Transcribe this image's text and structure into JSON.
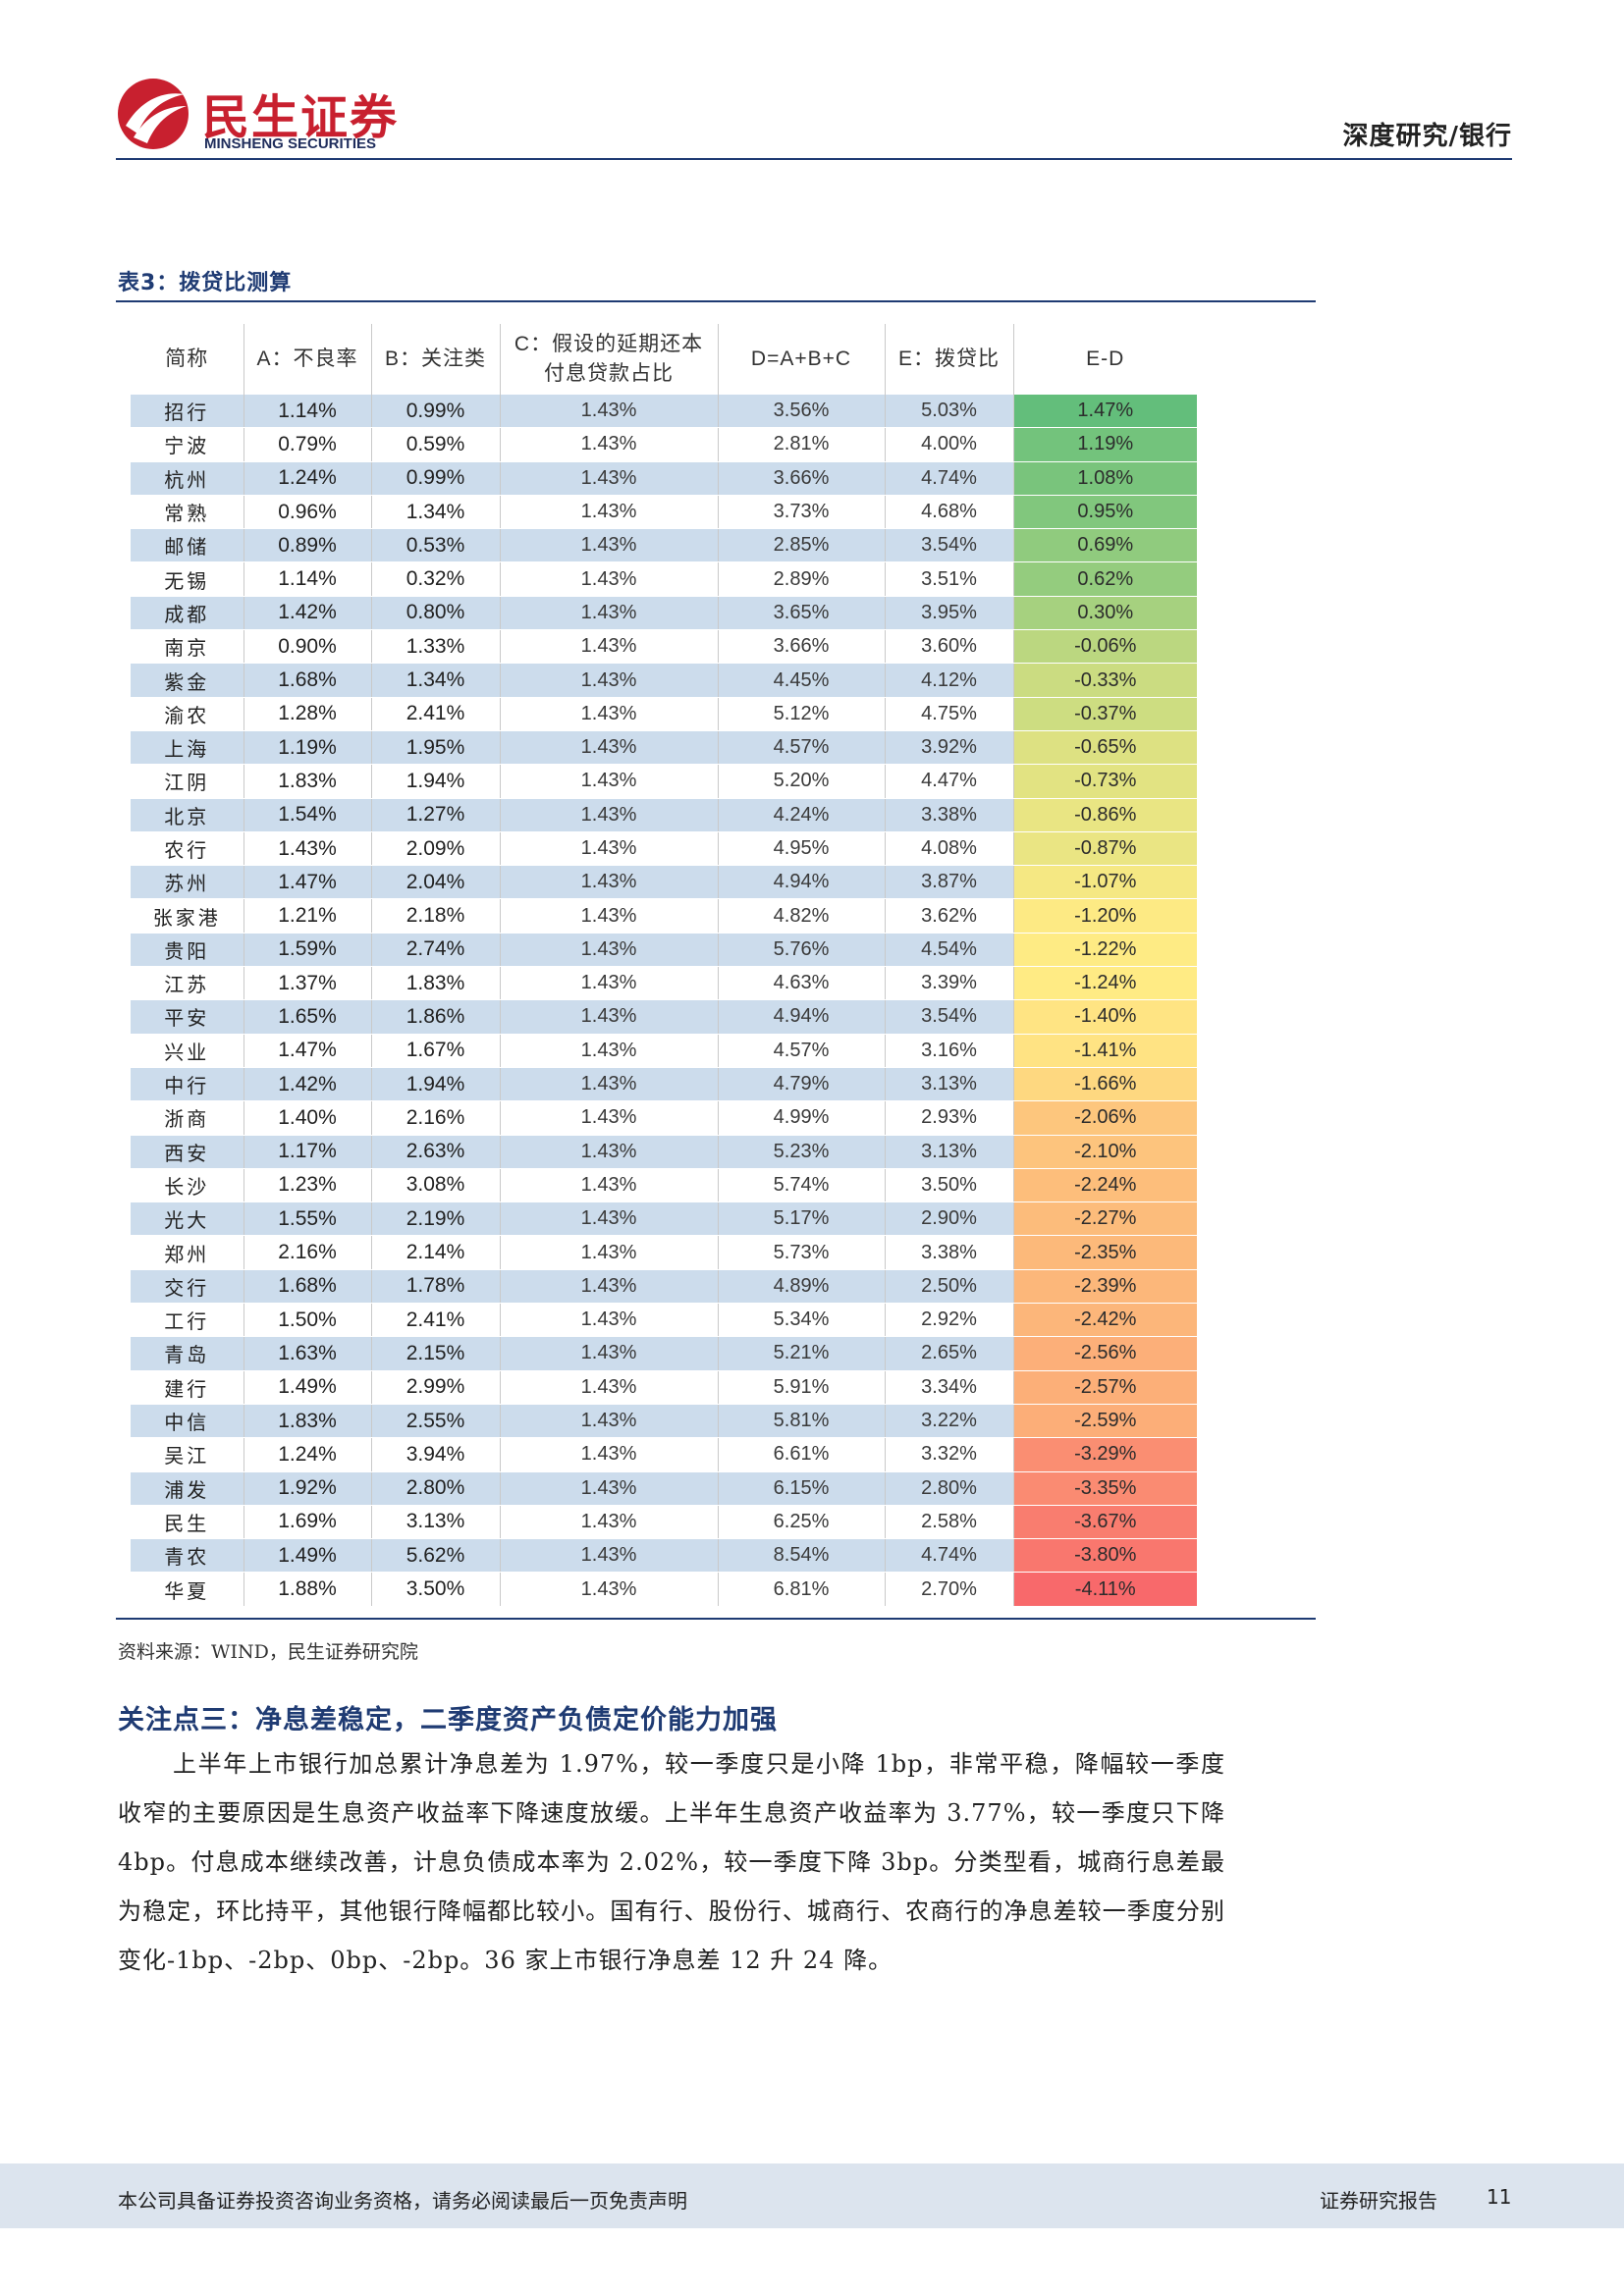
{
  "header": {
    "logo_cn": "民生证券",
    "logo_en": "MINSHENG SECURITIES",
    "category": "深度研究/银行"
  },
  "colors": {
    "brand_red": "#c8202f",
    "brand_navy": "#1f3b73",
    "stripe": "#ccdcec",
    "scale_high": "#63be7b",
    "scale_mid": "#ffeb84",
    "scale_low": "#f8696b"
  },
  "table": {
    "title": "表3：拨贷比测算",
    "headers": [
      "简称",
      "A：不良率",
      "B：关注类",
      "C：假设的延期还本付息贷款占比",
      "D=A+B+C",
      "E：拨贷比",
      "E-D"
    ],
    "rows": [
      {
        "name": "招行",
        "a": "1.14%",
        "b": "0.99%",
        "c": "1.43%",
        "d": "3.56%",
        "e": "5.03%",
        "ed": "1.47%",
        "v": 1.47
      },
      {
        "name": "宁波",
        "a": "0.79%",
        "b": "0.59%",
        "c": "1.43%",
        "d": "2.81%",
        "e": "4.00%",
        "ed": "1.19%",
        "v": 1.19
      },
      {
        "name": "杭州",
        "a": "1.24%",
        "b": "0.99%",
        "c": "1.43%",
        "d": "3.66%",
        "e": "4.74%",
        "ed": "1.08%",
        "v": 1.08
      },
      {
        "name": "常熟",
        "a": "0.96%",
        "b": "1.34%",
        "c": "1.43%",
        "d": "3.73%",
        "e": "4.68%",
        "ed": "0.95%",
        "v": 0.95
      },
      {
        "name": "邮储",
        "a": "0.89%",
        "b": "0.53%",
        "c": "1.43%",
        "d": "2.85%",
        "e": "3.54%",
        "ed": "0.69%",
        "v": 0.69
      },
      {
        "name": "无锡",
        "a": "1.14%",
        "b": "0.32%",
        "c": "1.43%",
        "d": "2.89%",
        "e": "3.51%",
        "ed": "0.62%",
        "v": 0.62
      },
      {
        "name": "成都",
        "a": "1.42%",
        "b": "0.80%",
        "c": "1.43%",
        "d": "3.65%",
        "e": "3.95%",
        "ed": "0.30%",
        "v": 0.3
      },
      {
        "name": "南京",
        "a": "0.90%",
        "b": "1.33%",
        "c": "1.43%",
        "d": "3.66%",
        "e": "3.60%",
        "ed": "-0.06%",
        "v": -0.06
      },
      {
        "name": "紫金",
        "a": "1.68%",
        "b": "1.34%",
        "c": "1.43%",
        "d": "4.45%",
        "e": "4.12%",
        "ed": "-0.33%",
        "v": -0.33
      },
      {
        "name": "渝农",
        "a": "1.28%",
        "b": "2.41%",
        "c": "1.43%",
        "d": "5.12%",
        "e": "4.75%",
        "ed": "-0.37%",
        "v": -0.37
      },
      {
        "name": "上海",
        "a": "1.19%",
        "b": "1.95%",
        "c": "1.43%",
        "d": "4.57%",
        "e": "3.92%",
        "ed": "-0.65%",
        "v": -0.65
      },
      {
        "name": "江阴",
        "a": "1.83%",
        "b": "1.94%",
        "c": "1.43%",
        "d": "5.20%",
        "e": "4.47%",
        "ed": "-0.73%",
        "v": -0.73
      },
      {
        "name": "北京",
        "a": "1.54%",
        "b": "1.27%",
        "c": "1.43%",
        "d": "4.24%",
        "e": "3.38%",
        "ed": "-0.86%",
        "v": -0.86
      },
      {
        "name": "农行",
        "a": "1.43%",
        "b": "2.09%",
        "c": "1.43%",
        "d": "4.95%",
        "e": "4.08%",
        "ed": "-0.87%",
        "v": -0.87
      },
      {
        "name": "苏州",
        "a": "1.47%",
        "b": "2.04%",
        "c": "1.43%",
        "d": "4.94%",
        "e": "3.87%",
        "ed": "-1.07%",
        "v": -1.07
      },
      {
        "name": "张家港",
        "a": "1.21%",
        "b": "2.18%",
        "c": "1.43%",
        "d": "4.82%",
        "e": "3.62%",
        "ed": "-1.20%",
        "v": -1.2
      },
      {
        "name": "贵阳",
        "a": "1.59%",
        "b": "2.74%",
        "c": "1.43%",
        "d": "5.76%",
        "e": "4.54%",
        "ed": "-1.22%",
        "v": -1.22
      },
      {
        "name": "江苏",
        "a": "1.37%",
        "b": "1.83%",
        "c": "1.43%",
        "d": "4.63%",
        "e": "3.39%",
        "ed": "-1.24%",
        "v": -1.24
      },
      {
        "name": "平安",
        "a": "1.65%",
        "b": "1.86%",
        "c": "1.43%",
        "d": "4.94%",
        "e": "3.54%",
        "ed": "-1.40%",
        "v": -1.4
      },
      {
        "name": "兴业",
        "a": "1.47%",
        "b": "1.67%",
        "c": "1.43%",
        "d": "4.57%",
        "e": "3.16%",
        "ed": "-1.41%",
        "v": -1.41
      },
      {
        "name": "中行",
        "a": "1.42%",
        "b": "1.94%",
        "c": "1.43%",
        "d": "4.79%",
        "e": "3.13%",
        "ed": "-1.66%",
        "v": -1.66
      },
      {
        "name": "浙商",
        "a": "1.40%",
        "b": "2.16%",
        "c": "1.43%",
        "d": "4.99%",
        "e": "2.93%",
        "ed": "-2.06%",
        "v": -2.06
      },
      {
        "name": "西安",
        "a": "1.17%",
        "b": "2.63%",
        "c": "1.43%",
        "d": "5.23%",
        "e": "3.13%",
        "ed": "-2.10%",
        "v": -2.1
      },
      {
        "name": "长沙",
        "a": "1.23%",
        "b": "3.08%",
        "c": "1.43%",
        "d": "5.74%",
        "e": "3.50%",
        "ed": "-2.24%",
        "v": -2.24
      },
      {
        "name": "光大",
        "a": "1.55%",
        "b": "2.19%",
        "c": "1.43%",
        "d": "5.17%",
        "e": "2.90%",
        "ed": "-2.27%",
        "v": -2.27
      },
      {
        "name": "郑州",
        "a": "2.16%",
        "b": "2.14%",
        "c": "1.43%",
        "d": "5.73%",
        "e": "3.38%",
        "ed": "-2.35%",
        "v": -2.35
      },
      {
        "name": "交行",
        "a": "1.68%",
        "b": "1.78%",
        "c": "1.43%",
        "d": "4.89%",
        "e": "2.50%",
        "ed": "-2.39%",
        "v": -2.39
      },
      {
        "name": "工行",
        "a": "1.50%",
        "b": "2.41%",
        "c": "1.43%",
        "d": "5.34%",
        "e": "2.92%",
        "ed": "-2.42%",
        "v": -2.42
      },
      {
        "name": "青岛",
        "a": "1.63%",
        "b": "2.15%",
        "c": "1.43%",
        "d": "5.21%",
        "e": "2.65%",
        "ed": "-2.56%",
        "v": -2.56
      },
      {
        "name": "建行",
        "a": "1.49%",
        "b": "2.99%",
        "c": "1.43%",
        "d": "5.91%",
        "e": "3.34%",
        "ed": "-2.57%",
        "v": -2.57
      },
      {
        "name": "中信",
        "a": "1.83%",
        "b": "2.55%",
        "c": "1.43%",
        "d": "5.81%",
        "e": "3.22%",
        "ed": "-2.59%",
        "v": -2.59
      },
      {
        "name": "吴江",
        "a": "1.24%",
        "b": "3.94%",
        "c": "1.43%",
        "d": "6.61%",
        "e": "3.32%",
        "ed": "-3.29%",
        "v": -3.29
      },
      {
        "name": "浦发",
        "a": "1.92%",
        "b": "2.80%",
        "c": "1.43%",
        "d": "6.15%",
        "e": "2.80%",
        "ed": "-3.35%",
        "v": -3.35
      },
      {
        "name": "民生",
        "a": "1.69%",
        "b": "3.13%",
        "c": "1.43%",
        "d": "6.25%",
        "e": "2.58%",
        "ed": "-3.67%",
        "v": -3.67
      },
      {
        "name": "青农",
        "a": "1.49%",
        "b": "5.62%",
        "c": "1.43%",
        "d": "8.54%",
        "e": "4.74%",
        "ed": "-3.80%",
        "v": -3.8
      },
      {
        "name": "华夏",
        "a": "1.88%",
        "b": "3.50%",
        "c": "1.43%",
        "d": "6.81%",
        "e": "2.70%",
        "ed": "-4.11%",
        "v": -4.11
      }
    ],
    "source": "资料来源：WIND，民生证券研究院"
  },
  "section": {
    "title": "关注点三：净息差稳定，二季度资产负债定价能力加强",
    "paragraph": "上半年上市银行加总累计净息差为 1.97%，较一季度只是小降 1bp，非常平稳，降幅较一季度收窄的主要原因是生息资产收益率下降速度放缓。上半年生息资产收益率为 3.77%，较一季度只下降 4bp。付息成本继续改善，计息负债成本率为 2.02%，较一季度下降 3bp。分类型看，城商行息差最为稳定，环比持平，其他银行降幅都比较小。国有行、股份行、城商行、农商行的净息差较一季度分别变化-1bp、-2bp、0bp、-2bp。36 家上市银行净息差 12 升 24 降。"
  },
  "footer": {
    "disclaimer": "本公司具备证券投资咨询业务资格，请务必阅读最后一页免责声明",
    "report_type": "证券研究报告",
    "page": "11"
  }
}
